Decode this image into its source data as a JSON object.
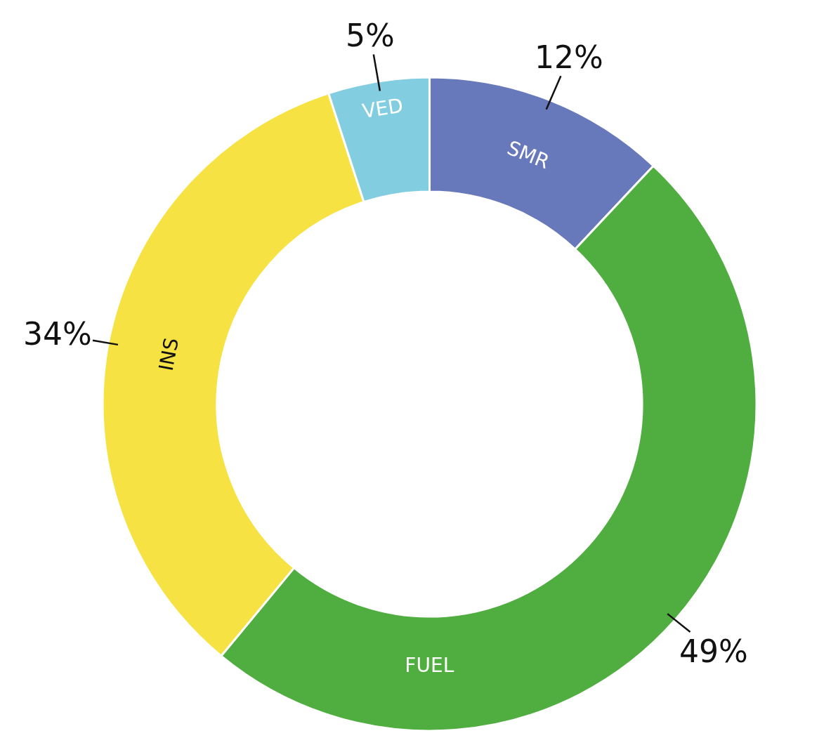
{
  "chart_data": {
    "type": "donut",
    "categories": [
      "SMR",
      "FUEL",
      "INS",
      "VED"
    ],
    "values": [
      12,
      49,
      34,
      5
    ],
    "colors": [
      "#6879bb",
      "#4fae3f",
      "#f6e243",
      "#82cde0"
    ],
    "value_labels": [
      "12%",
      "49%",
      "34%",
      "5%"
    ],
    "legend": false
  }
}
